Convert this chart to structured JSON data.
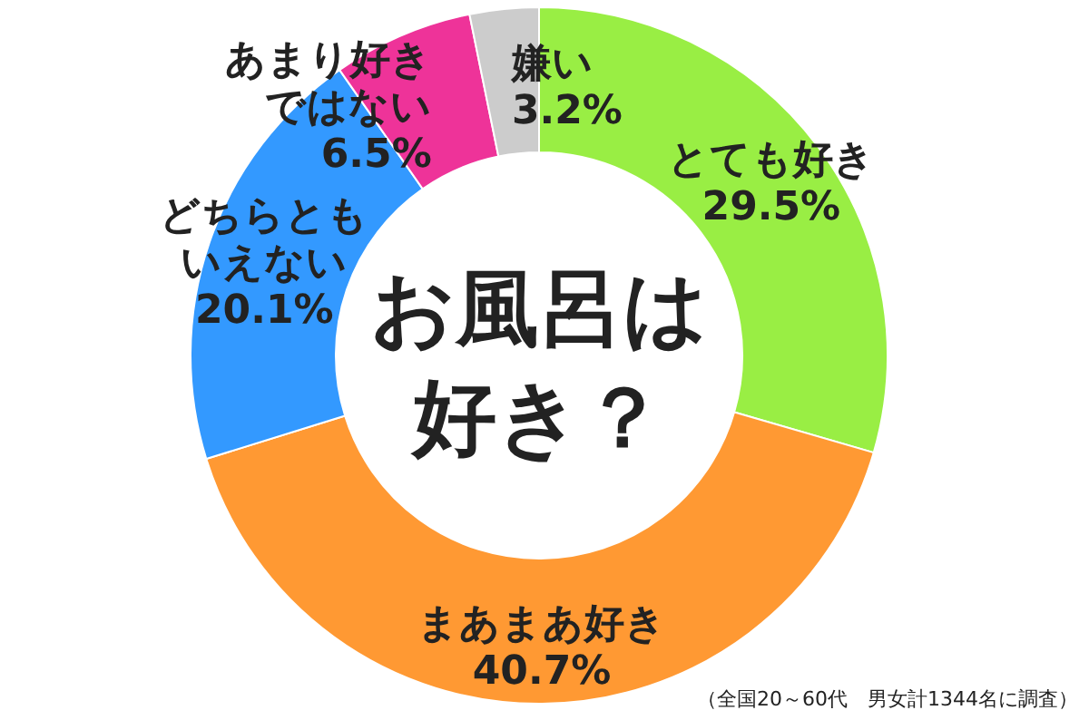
{
  "chart_data": {
    "type": "donut",
    "title": "お風呂は好き？",
    "categories": [
      "とても好き",
      "まあまあ好き",
      "どちらともいえない",
      "あまり好きではない",
      "嫌い"
    ],
    "values": [
      29.5,
      40.7,
      20.1,
      6.5,
      3.2
    ],
    "value_labels": [
      "29.5%",
      "40.7%",
      "20.1%",
      "6.5%",
      "3.2%"
    ],
    "colors": [
      "#99ee44",
      "#ff9933",
      "#3399ff",
      "#ee3399",
      "#cccccc"
    ],
    "annotations": [
      "（全国20～60代　男女計1344名に調査）"
    ]
  }
}
